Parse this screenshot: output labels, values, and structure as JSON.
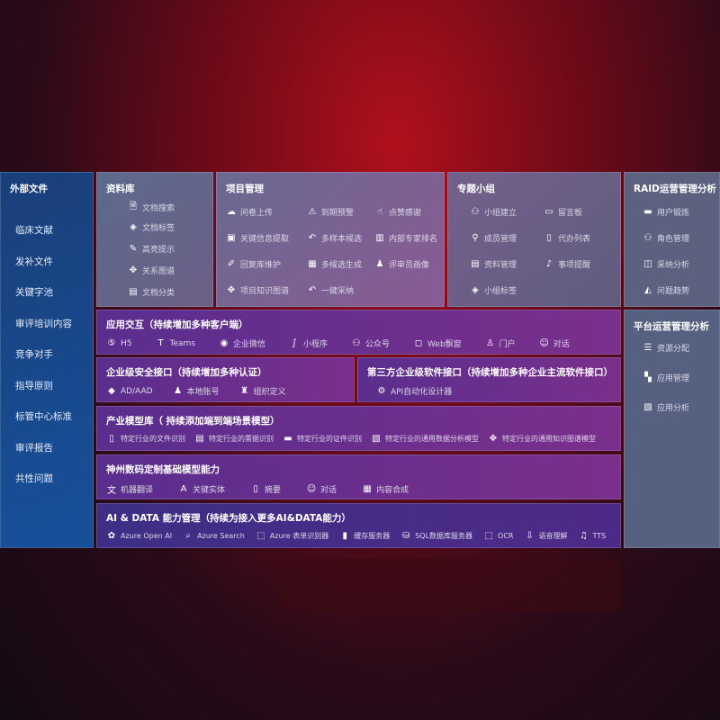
{
  "external": {
    "title": "外部文件",
    "items": [
      "临床文献",
      "发补文件",
      "关键字池",
      "审评培训内容",
      "竞争对手",
      "指导原则",
      "标管中心标准",
      "审评报告",
      "共性问题"
    ]
  },
  "library": {
    "title": "资料库",
    "items": [
      {
        "icon": "document-search-icon",
        "label": "文档搜索"
      },
      {
        "icon": "tag-icon",
        "label": "文档标签"
      },
      {
        "icon": "pen-icon",
        "label": "高亮提示"
      },
      {
        "icon": "graph-icon",
        "label": "关系图谱"
      },
      {
        "icon": "folder-icon",
        "label": "文档分类"
      }
    ]
  },
  "project": {
    "title": "项目管理",
    "items": [
      {
        "icon": "cloud-upload-icon",
        "label": "问卷上传"
      },
      {
        "icon": "alarm-icon",
        "label": "到期预警"
      },
      {
        "icon": "thumbs-up-icon",
        "label": "点赞感谢"
      },
      {
        "icon": "form-icon",
        "label": "关键信息提取"
      },
      {
        "icon": "reply-icon",
        "label": "多样本候选"
      },
      {
        "icon": "ranking-icon",
        "label": "内部专家排名"
      },
      {
        "icon": "edit-icon",
        "label": "回复库维护"
      },
      {
        "icon": "puzzle-icon",
        "label": "多候选生成"
      },
      {
        "icon": "user-icon",
        "label": "评审员画像"
      },
      {
        "icon": "graph-icon",
        "label": "项目知识图谱"
      },
      {
        "icon": "reply-icon",
        "label": "一键采纳"
      }
    ]
  },
  "group": {
    "title": "专题小组",
    "items": [
      {
        "icon": "group-icon",
        "label": "小组建立"
      },
      {
        "icon": "bbs-icon",
        "label": "留言板"
      },
      {
        "icon": "user-add-icon",
        "label": "成员管理"
      },
      {
        "icon": "clipboard-icon",
        "label": "代办列表"
      },
      {
        "icon": "folder-icon",
        "label": "资料管理"
      },
      {
        "icon": "bell-icon",
        "label": "事项提醒"
      },
      {
        "icon": "tag-icon",
        "label": "小组标签"
      }
    ]
  },
  "raid": {
    "title": "RAID运营管理分析",
    "items": [
      {
        "icon": "id-card-icon",
        "label": "用户锻炼"
      },
      {
        "icon": "users-icon",
        "label": "角色管理"
      },
      {
        "icon": "qa-icon",
        "label": "采纳分析"
      },
      {
        "icon": "trend-icon",
        "label": "问题趋势"
      }
    ]
  },
  "platform": {
    "title": "平台运营管理分析",
    "items": [
      {
        "icon": "list-icon",
        "label": "资源分配"
      },
      {
        "icon": "apps-icon",
        "label": "应用管理"
      },
      {
        "icon": "chart-icon",
        "label": "应用分析"
      }
    ]
  },
  "app": {
    "title": "应用交互（持续增加多种客户端）",
    "items": [
      {
        "icon": "html5-icon",
        "label": "H5"
      },
      {
        "icon": "teams-icon",
        "label": "Teams"
      },
      {
        "icon": "wecom-icon",
        "label": "企业微信"
      },
      {
        "icon": "miniprogram-icon",
        "label": "小程序"
      },
      {
        "icon": "users-icon",
        "label": "公众号"
      },
      {
        "icon": "window-icon",
        "label": "Web飘窗"
      },
      {
        "icon": "portal-icon",
        "label": "门户"
      },
      {
        "icon": "chat-icon",
        "label": "对话"
      }
    ]
  },
  "security": {
    "title": "企业级安全接口（持续增加多种认证）",
    "items": [
      {
        "icon": "azure-ad-icon",
        "label": "AD/AAD"
      },
      {
        "icon": "account-icon",
        "label": "本地账号"
      },
      {
        "icon": "org-icon",
        "label": "组织定义"
      }
    ]
  },
  "third": {
    "title": "第三方企业级软件接口（持续增加多种企业主流软件接口）",
    "items": [
      {
        "icon": "gear-icon",
        "label": "API自动化设计器"
      }
    ]
  },
  "industry": {
    "title": "产业模型库（ 持续添加端到端场景模型）",
    "items": [
      {
        "icon": "file-icon",
        "label": "特定行业的文件识别"
      },
      {
        "icon": "receipt-icon",
        "label": "特定行业的票据识别"
      },
      {
        "icon": "id-card-icon",
        "label": "特定行业的证件识别"
      },
      {
        "icon": "image-icon",
        "label": "特定行业的通用数据分析模型"
      },
      {
        "icon": "graph-icon",
        "label": "特定行业的通用知识图谱模型"
      }
    ]
  },
  "base": {
    "title": "神州数码定制基础模型能力",
    "items": [
      {
        "icon": "translate-icon",
        "label": "机器翻译"
      },
      {
        "icon": "entity-icon",
        "label": "关键实体"
      },
      {
        "icon": "summary-icon",
        "label": "摘要"
      },
      {
        "icon": "chat-icon",
        "label": "对话"
      },
      {
        "icon": "puzzle-icon",
        "label": "内容合成"
      }
    ]
  },
  "aidata": {
    "title": "AI & DATA 能力管理（持续为接入更多AI&DATA能力）",
    "items": [
      {
        "icon": "openai-icon",
        "label": "Azure Open AI"
      },
      {
        "icon": "search-icon",
        "label": "Azure Search"
      },
      {
        "icon": "form-recognizer-icon",
        "label": "Azure 表单识别器"
      },
      {
        "icon": "cache-icon",
        "label": "缓存服务器"
      },
      {
        "icon": "database-icon",
        "label": "SQL数据库服务器"
      },
      {
        "icon": "ocr-icon",
        "label": "OCR"
      },
      {
        "icon": "speech-icon",
        "label": "语音理解"
      },
      {
        "icon": "tts-icon",
        "label": "TTS"
      }
    ]
  }
}
